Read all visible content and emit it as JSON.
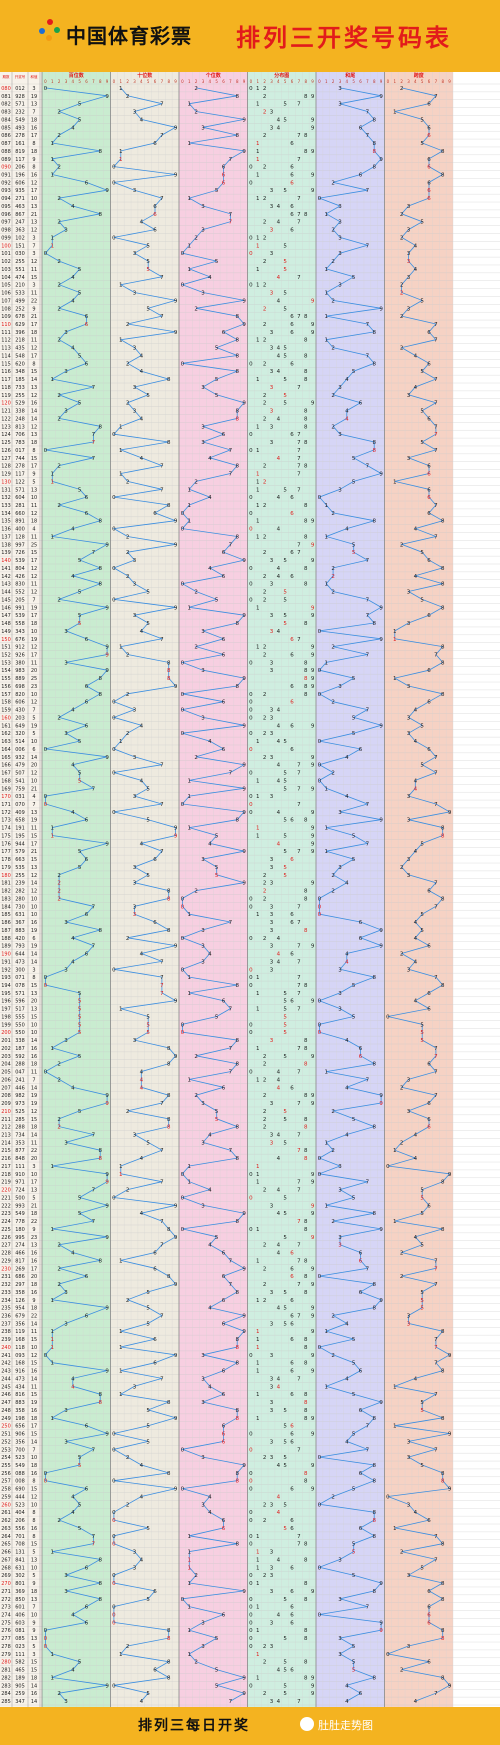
{
  "header": {
    "brand": "中国体育彩票",
    "title": "排列三开奖号码表"
  },
  "footer": {
    "caption": "排列三每日开奖",
    "watermark": "肚肚走势图"
  },
  "colors": {
    "band_green": "#c9ecd0",
    "band_beige": "#eeeadf",
    "band_pink": "#f7cfe1",
    "band_mint": "#cfeee0",
    "band_lavender": "#d6d5f6",
    "band_salmon": "#f6d2c4",
    "line": "#3b8ee0",
    "hot": "#e01b1b"
  },
  "chart_data": {
    "type": "table",
    "columns": [
      "期数",
      "开奖号",
      "和值"
    ],
    "sections": [
      "百位数",
      "十位数",
      "个位数",
      "分布图",
      "和尾",
      "跨度"
    ],
    "digits": [
      "0",
      "1",
      "2",
      "3",
      "4",
      "5",
      "6",
      "7",
      "8",
      "9"
    ],
    "draws": [
      {
        "p": "080",
        "n": "012",
        "s": 3
      },
      {
        "p": "081",
        "n": "928",
        "s": 19
      },
      {
        "p": "082",
        "n": "571",
        "s": 13
      },
      {
        "p": "083",
        "n": "232",
        "s": 7
      },
      {
        "p": "084",
        "n": "549",
        "s": 18
      },
      {
        "p": "085",
        "n": "493",
        "s": 16
      },
      {
        "p": "086",
        "n": "278",
        "s": 17
      },
      {
        "p": "087",
        "n": "161",
        "s": 8
      },
      {
        "p": "088",
        "n": "819",
        "s": 18
      },
      {
        "p": "089",
        "n": "117",
        "s": 9
      },
      {
        "p": "090",
        "n": "206",
        "s": 8
      },
      {
        "p": "091",
        "n": "196",
        "s": 16
      },
      {
        "p": "092",
        "n": "606",
        "s": 12
      },
      {
        "p": "093",
        "n": "935",
        "s": 17
      },
      {
        "p": "094",
        "n": "271",
        "s": 10
      },
      {
        "p": "095",
        "n": "463",
        "s": 13
      },
      {
        "p": "096",
        "n": "867",
        "s": 21
      },
      {
        "p": "097",
        "n": "247",
        "s": 13
      },
      {
        "p": "098",
        "n": "363",
        "s": 12
      },
      {
        "p": "099",
        "n": "102",
        "s": 3
      },
      {
        "p": "100",
        "n": "151",
        "s": 7
      },
      {
        "p": "101",
        "n": "030",
        "s": 3
      },
      {
        "p": "102",
        "n": "255",
        "s": 12
      },
      {
        "p": "103",
        "n": "551",
        "s": 11
      },
      {
        "p": "104",
        "n": "474",
        "s": 15
      },
      {
        "p": "105",
        "n": "210",
        "s": 3
      },
      {
        "p": "106",
        "n": "533",
        "s": 11
      },
      {
        "p": "107",
        "n": "499",
        "s": 22
      },
      {
        "p": "108",
        "n": "252",
        "s": 9
      },
      {
        "p": "109",
        "n": "678",
        "s": 21
      },
      {
        "p": "110",
        "n": "629",
        "s": 17
      },
      {
        "p": "111",
        "n": "396",
        "s": 18
      },
      {
        "p": "112",
        "n": "218",
        "s": 11
      },
      {
        "p": "113",
        "n": "435",
        "s": 12
      },
      {
        "p": "114",
        "n": "548",
        "s": 17
      },
      {
        "p": "115",
        "n": "620",
        "s": 8
      },
      {
        "p": "116",
        "n": "348",
        "s": 15
      },
      {
        "p": "117",
        "n": "185",
        "s": 14
      },
      {
        "p": "118",
        "n": "733",
        "s": 13
      },
      {
        "p": "119",
        "n": "255",
        "s": 12
      },
      {
        "p": "120",
        "n": "529",
        "s": 16
      },
      {
        "p": "121",
        "n": "338",
        "s": 14
      },
      {
        "p": "122",
        "n": "248",
        "s": 14
      },
      {
        "p": "123",
        "n": "813",
        "s": 12
      },
      {
        "p": "124",
        "n": "706",
        "s": 13
      },
      {
        "p": "125",
        "n": "783",
        "s": 18
      },
      {
        "p": "126",
        "n": "017",
        "s": 8
      },
      {
        "p": "127",
        "n": "744",
        "s": 15
      },
      {
        "p": "128",
        "n": "278",
        "s": 17
      },
      {
        "p": "129",
        "n": "117",
        "s": 9
      },
      {
        "p": "130",
        "n": "122",
        "s": 5
      },
      {
        "p": "131",
        "n": "571",
        "s": 13
      },
      {
        "p": "132",
        "n": "604",
        "s": 10
      },
      {
        "p": "133",
        "n": "281",
        "s": 11
      },
      {
        "p": "134",
        "n": "660",
        "s": 12
      },
      {
        "p": "135",
        "n": "891",
        "s": 18
      },
      {
        "p": "136",
        "n": "400",
        "s": 4
      },
      {
        "p": "137",
        "n": "128",
        "s": 11
      },
      {
        "p": "138",
        "n": "997",
        "s": 25
      },
      {
        "p": "139",
        "n": "726",
        "s": 15
      },
      {
        "p": "140",
        "n": "539",
        "s": 17
      },
      {
        "p": "141",
        "n": "804",
        "s": 12
      },
      {
        "p": "142",
        "n": "426",
        "s": 12
      },
      {
        "p": "143",
        "n": "830",
        "s": 11
      },
      {
        "p": "144",
        "n": "552",
        "s": 12
      },
      {
        "p": "145",
        "n": "205",
        "s": 7
      },
      {
        "p": "146",
        "n": "991",
        "s": 19
      },
      {
        "p": "147",
        "n": "539",
        "s": 17
      },
      {
        "p": "148",
        "n": "558",
        "s": 18
      },
      {
        "p": "149",
        "n": "343",
        "s": 10
      },
      {
        "p": "150",
        "n": "676",
        "s": 19
      },
      {
        "p": "151",
        "n": "912",
        "s": 12
      },
      {
        "p": "152",
        "n": "926",
        "s": 17
      },
      {
        "p": "153",
        "n": "380",
        "s": 11
      },
      {
        "p": "154",
        "n": "983",
        "s": 20
      },
      {
        "p": "155",
        "n": "889",
        "s": 25
      },
      {
        "p": "156",
        "n": "698",
        "s": 23
      },
      {
        "p": "157",
        "n": "820",
        "s": 10
      },
      {
        "p": "158",
        "n": "606",
        "s": 12
      },
      {
        "p": "159",
        "n": "430",
        "s": 7
      },
      {
        "p": "160",
        "n": "203",
        "s": 5
      },
      {
        "p": "161",
        "n": "649",
        "s": 19
      },
      {
        "p": "162",
        "n": "320",
        "s": 5
      },
      {
        "p": "163",
        "n": "514",
        "s": 10
      },
      {
        "p": "164",
        "n": "006",
        "s": 6
      },
      {
        "p": "165",
        "n": "932",
        "s": 14
      },
      {
        "p": "166",
        "n": "479",
        "s": 20
      },
      {
        "p": "167",
        "n": "507",
        "s": 12
      },
      {
        "p": "168",
        "n": "541",
        "s": 10
      },
      {
        "p": "169",
        "n": "759",
        "s": 21
      },
      {
        "p": "170",
        "n": "031",
        "s": 4
      },
      {
        "p": "171",
        "n": "070",
        "s": 7
      },
      {
        "p": "172",
        "n": "409",
        "s": 13
      },
      {
        "p": "173",
        "n": "658",
        "s": 19
      },
      {
        "p": "174",
        "n": "191",
        "s": 11
      },
      {
        "p": "175",
        "n": "195",
        "s": 15
      },
      {
        "p": "176",
        "n": "944",
        "s": 17
      },
      {
        "p": "177",
        "n": "579",
        "s": 21
      },
      {
        "p": "178",
        "n": "663",
        "s": 15
      },
      {
        "p": "179",
        "n": "535",
        "s": 13
      },
      {
        "p": "180",
        "n": "255",
        "s": 12
      },
      {
        "p": "181",
        "n": "239",
        "s": 14
      },
      {
        "p": "182",
        "n": "282",
        "s": 12
      },
      {
        "p": "183",
        "n": "280",
        "s": 10
      },
      {
        "p": "184",
        "n": "730",
        "s": 10
      },
      {
        "p": "185",
        "n": "631",
        "s": 10
      },
      {
        "p": "186",
        "n": "367",
        "s": 16
      },
      {
        "p": "187",
        "n": "883",
        "s": 19
      },
      {
        "p": "188",
        "n": "420",
        "s": 6
      },
      {
        "p": "189",
        "n": "793",
        "s": 19
      },
      {
        "p": "190",
        "n": "644",
        "s": 14
      },
      {
        "p": "191",
        "n": "473",
        "s": 14
      },
      {
        "p": "192",
        "n": "300",
        "s": 3
      },
      {
        "p": "193",
        "n": "071",
        "s": 8
      },
      {
        "p": "194",
        "n": "078",
        "s": 15
      },
      {
        "p": "195",
        "n": "571",
        "s": 13
      },
      {
        "p": "196",
        "n": "596",
        "s": 20
      },
      {
        "p": "197",
        "n": "517",
        "s": 13
      },
      {
        "p": "198",
        "n": "555",
        "s": 15
      },
      {
        "p": "199",
        "n": "550",
        "s": 10
      },
      {
        "p": "200",
        "n": "550",
        "s": 10
      },
      {
        "p": "201",
        "n": "338",
        "s": 14
      },
      {
        "p": "202",
        "n": "187",
        "s": 16
      },
      {
        "p": "203",
        "n": "592",
        "s": 16
      },
      {
        "p": "204",
        "n": "288",
        "s": 18
      },
      {
        "p": "205",
        "n": "047",
        "s": 11
      },
      {
        "p": "206",
        "n": "241",
        "s": 7
      },
      {
        "p": "207",
        "n": "446",
        "s": 14
      },
      {
        "p": "208",
        "n": "982",
        "s": 19
      },
      {
        "p": "209",
        "n": "973",
        "s": 19
      },
      {
        "p": "210",
        "n": "525",
        "s": 12
      },
      {
        "p": "211",
        "n": "285",
        "s": 15
      },
      {
        "p": "212",
        "n": "288",
        "s": 18
      },
      {
        "p": "213",
        "n": "734",
        "s": 14
      },
      {
        "p": "214",
        "n": "353",
        "s": 11
      },
      {
        "p": "215",
        "n": "877",
        "s": 22
      },
      {
        "p": "216",
        "n": "848",
        "s": 20
      },
      {
        "p": "217",
        "n": "111",
        "s": 3
      },
      {
        "p": "218",
        "n": "910",
        "s": 10
      },
      {
        "p": "219",
        "n": "971",
        "s": 17
      },
      {
        "p": "220",
        "n": "724",
        "s": 13
      },
      {
        "p": "221",
        "n": "500",
        "s": 5
      },
      {
        "p": "222",
        "n": "993",
        "s": 21
      },
      {
        "p": "223",
        "n": "549",
        "s": 18
      },
      {
        "p": "224",
        "n": "778",
        "s": 22
      },
      {
        "p": "225",
        "n": "180",
        "s": 9
      },
      {
        "p": "226",
        "n": "995",
        "s": 23
      },
      {
        "p": "227",
        "n": "274",
        "s": 13
      },
      {
        "p": "228",
        "n": "466",
        "s": 16
      },
      {
        "p": "229",
        "n": "817",
        "s": 16
      },
      {
        "p": "230",
        "n": "269",
        "s": 17
      },
      {
        "p": "231",
        "n": "686",
        "s": 20
      },
      {
        "p": "232",
        "n": "297",
        "s": 18
      },
      {
        "p": "233",
        "n": "358",
        "s": 16
      },
      {
        "p": "234",
        "n": "126",
        "s": 9
      },
      {
        "p": "235",
        "n": "954",
        "s": 18
      },
      {
        "p": "236",
        "n": "679",
        "s": 22
      },
      {
        "p": "237",
        "n": "356",
        "s": 14
      },
      {
        "p": "238",
        "n": "119",
        "s": 11
      },
      {
        "p": "239",
        "n": "168",
        "s": 15
      },
      {
        "p": "240",
        "n": "118",
        "s": 10
      },
      {
        "p": "241",
        "n": "093",
        "s": 12
      },
      {
        "p": "242",
        "n": "168",
        "s": 15
      },
      {
        "p": "243",
        "n": "916",
        "s": 16
      },
      {
        "p": "244",
        "n": "473",
        "s": 14
      },
      {
        "p": "245",
        "n": "434",
        "s": 11
      },
      {
        "p": "246",
        "n": "816",
        "s": 15
      },
      {
        "p": "247",
        "n": "883",
        "s": 19
      },
      {
        "p": "248",
        "n": "358",
        "s": 16
      },
      {
        "p": "249",
        "n": "198",
        "s": 18
      },
      {
        "p": "250",
        "n": "656",
        "s": 17
      },
      {
        "p": "251",
        "n": "906",
        "s": 15
      },
      {
        "p": "252",
        "n": "356",
        "s": 14
      },
      {
        "p": "253",
        "n": "700",
        "s": 7
      },
      {
        "p": "254",
        "n": "523",
        "s": 10
      },
      {
        "p": "255",
        "n": "549",
        "s": 18
      },
      {
        "p": "256",
        "n": "088",
        "s": 16
      },
      {
        "p": "257",
        "n": "008",
        "s": 8
      },
      {
        "p": "258",
        "n": "690",
        "s": 15
      },
      {
        "p": "259",
        "n": "444",
        "s": 12
      },
      {
        "p": "260",
        "n": "523",
        "s": 10
      },
      {
        "p": "261",
        "n": "404",
        "s": 8
      },
      {
        "p": "262",
        "n": "206",
        "s": 8
      },
      {
        "p": "263",
        "n": "556",
        "s": 16
      },
      {
        "p": "264",
        "n": "701",
        "s": 8
      },
      {
        "p": "265",
        "n": "708",
        "s": 15
      },
      {
        "p": "266",
        "n": "131",
        "s": 5
      },
      {
        "p": "267",
        "n": "841",
        "s": 13
      },
      {
        "p": "268",
        "n": "631",
        "s": 10
      },
      {
        "p": "269",
        "n": "302",
        "s": 5
      },
      {
        "p": "270",
        "n": "801",
        "s": 9
      },
      {
        "p": "271",
        "n": "369",
        "s": 18
      },
      {
        "p": "272",
        "n": "850",
        "s": 13
      },
      {
        "p": "273",
        "n": "601",
        "s": 7
      },
      {
        "p": "274",
        "n": "406",
        "s": 10
      },
      {
        "p": "275",
        "n": "603",
        "s": 9
      },
      {
        "p": "276",
        "n": "081",
        "s": 9
      },
      {
        "p": "277",
        "n": "085",
        "s": 13
      },
      {
        "p": "278",
        "n": "023",
        "s": 5
      },
      {
        "p": "279",
        "n": "111",
        "s": 3
      },
      {
        "p": "280",
        "n": "582",
        "s": 15
      },
      {
        "p": "281",
        "n": "465",
        "s": 15
      },
      {
        "p": "282",
        "n": "189",
        "s": 18
      },
      {
        "p": "283",
        "n": "905",
        "s": 14
      },
      {
        "p": "284",
        "n": "259",
        "s": 16
      },
      {
        "p": "285",
        "n": "347",
        "s": 14
      }
    ]
  }
}
